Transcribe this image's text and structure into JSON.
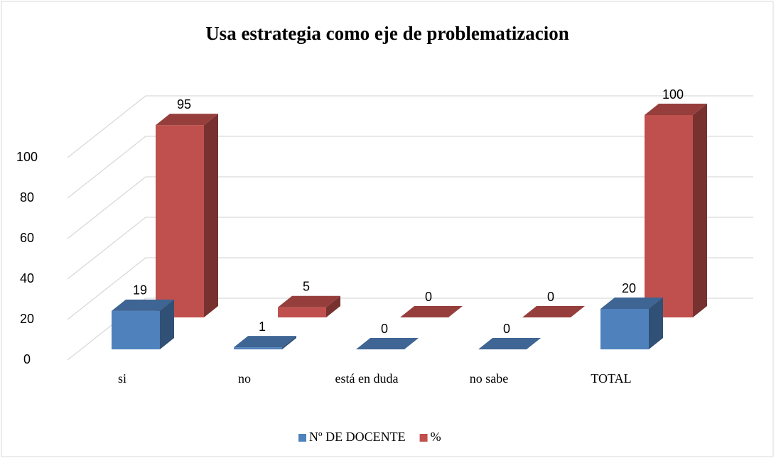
{
  "chart_data": {
    "type": "bar3d",
    "title": "Usa estrategia como eje de problematizacion",
    "categories": [
      "si",
      "no",
      "está en duda",
      "no sabe",
      "TOTAL"
    ],
    "series": [
      {
        "name": "Nº DE DOCENTE",
        "color": "#4f81bd",
        "values": [
          19,
          1,
          0,
          0,
          20
        ]
      },
      {
        "name": "%",
        "color": "#c0504d",
        "values": [
          95,
          5,
          0,
          0,
          100
        ]
      }
    ],
    "ylim": [
      0,
      100
    ],
    "yticks": [
      0,
      20,
      40,
      60,
      80,
      100
    ],
    "grid": true,
    "legend": "bottom"
  }
}
